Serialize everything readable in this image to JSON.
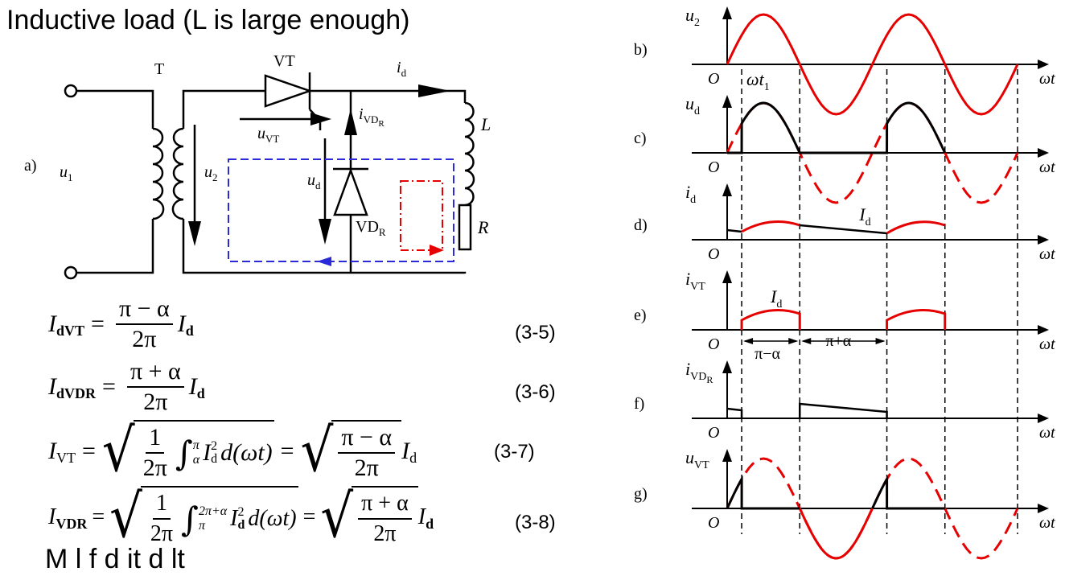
{
  "title": "Inductive load (L is large enough)",
  "footer_text": "M     l      f       d  it            d                   lt",
  "circuit": {
    "panel_label": "a)",
    "transformer_label": "T",
    "thyristor_label": "VT",
    "current_label": "i",
    "current_sub": "d",
    "ivdr_label": "i",
    "ivdr_sub": "VD",
    "ivdr_subsub": "R",
    "uvt_label": "u",
    "uvt_sub": "VT",
    "u1_label": "u",
    "u1_sub": "1",
    "u2_label": "u",
    "u2_sub": "2",
    "ud_label": "u",
    "ud_sub": "d",
    "diode_label": "VD",
    "diode_sub": "R",
    "inductor_label": "L",
    "resistor_label": "R"
  },
  "equations": {
    "eq1": {
      "lhs": "I",
      "lhs_sub": "dVT",
      "num": "π − α",
      "den": "2π",
      "tail": "I",
      "tail_sub": "d",
      "number": "(3-5)"
    },
    "eq2": {
      "lhs": "I",
      "lhs_sub": "dVDR",
      "num": "π + α",
      "den": "2π",
      "tail": "I",
      "tail_sub": "d",
      "number": "(3-6)"
    },
    "eq3": {
      "lhs": "I",
      "lhs_sub": "VT",
      "one": "1",
      "den": "2π",
      "int_upper": "π",
      "int_lower": "α",
      "integrand": "I",
      "integrand_sub": "d",
      "integrand_sup": "2",
      "dwt": "d(ωt)",
      "num2": "π − α",
      "den2": "2π",
      "tail": "I",
      "tail_sub": "d",
      "number": "(3-7)"
    },
    "eq4": {
      "lhs": "I",
      "lhs_sub": "VDR",
      "one": "1",
      "den": "2π",
      "int_upper": "2π+α",
      "int_lower": "π",
      "integrand": "I",
      "integrand_sub": "d",
      "integrand_sup": "2",
      "dwt": "d(ωt)",
      "num2": "π + α",
      "den2": "2π",
      "tail": "I",
      "tail_sub": "d",
      "number": "(3-8)"
    }
  },
  "waveforms": {
    "panels": [
      {
        "label": "b)",
        "signal": "u",
        "signal_sub": "2"
      },
      {
        "label": "c)",
        "signal": "u",
        "signal_sub": "d"
      },
      {
        "label": "d)",
        "signal": "i",
        "signal_sub": "d"
      },
      {
        "label": "e)",
        "signal": "i",
        "signal_sub": "VT"
      },
      {
        "label": "f)",
        "signal": "i",
        "signal_sub": "VD",
        "signal_subsub": "R"
      },
      {
        "label": "g)",
        "signal": "u",
        "signal_sub": "VT"
      }
    ],
    "origin": "O",
    "axis_label": "ωt",
    "firing_label": "ωt",
    "firing_sub": "1",
    "id_label": "I",
    "id_sub": "d",
    "interval1": "π−α",
    "interval2": "π+α",
    "colors": {
      "red": "#e60000",
      "black": "#000000",
      "blue": "#2a2ad8"
    }
  }
}
